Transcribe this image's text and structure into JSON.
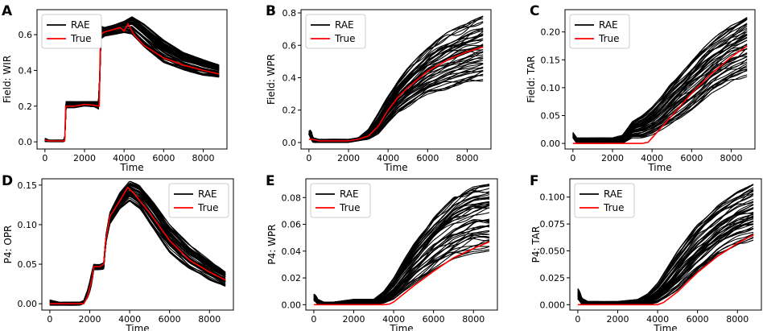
{
  "chart_data": [
    {
      "letter": "A",
      "type": "line",
      "title": "",
      "ylabel": "Field: WIR",
      "xlabel": "Time",
      "xlim": [
        -400,
        9200
      ],
      "ylim": [
        -0.04,
        0.74
      ],
      "xticks": [
        0,
        2000,
        4000,
        6000,
        8000
      ],
      "xtick_labels": [
        "0",
        "2000",
        "4000",
        "6000",
        "8000"
      ],
      "yticks": [
        0,
        0.2,
        0.4,
        0.6
      ],
      "ytick_labels": [
        "0.0",
        "0.2",
        "0.4",
        "0.6"
      ],
      "legend": {
        "position": "upper-left",
        "entries": [
          "RAE",
          "True"
        ]
      },
      "series": [
        {
          "name": "True",
          "color": "#ff0000",
          "x": [
            0,
            200,
            600,
            1000,
            1050,
            1500,
            2000,
            2500,
            2750,
            2800,
            3000,
            3500,
            3800,
            4000,
            4200,
            4300,
            4500,
            5000,
            6000,
            7000,
            8000,
            8800
          ],
          "y": [
            0.01,
            0.005,
            0.005,
            0.005,
            0.2,
            0.2,
            0.21,
            0.205,
            0.2,
            0.6,
            0.615,
            0.63,
            0.64,
            0.62,
            0.66,
            0.64,
            0.6,
            0.54,
            0.47,
            0.43,
            0.4,
            0.38
          ]
        },
        {
          "name": "RAE",
          "color": "#000000",
          "ensemble_count": 50,
          "x": [
            0,
            200,
            600,
            1000,
            1050,
            1500,
            2000,
            2500,
            2750,
            2800,
            3000,
            3500,
            4000,
            4400,
            5000,
            6000,
            7000,
            8000,
            8800
          ],
          "y_low": [
            0.0,
            0.0,
            0.0,
            0.0,
            0.19,
            0.19,
            0.2,
            0.195,
            0.18,
            0.57,
            0.59,
            0.6,
            0.61,
            0.6,
            0.53,
            0.44,
            0.4,
            0.37,
            0.36
          ],
          "y_high": [
            0.02,
            0.01,
            0.01,
            0.01,
            0.225,
            0.225,
            0.225,
            0.225,
            0.225,
            0.65,
            0.64,
            0.655,
            0.675,
            0.7,
            0.66,
            0.57,
            0.5,
            0.46,
            0.43
          ]
        }
      ]
    },
    {
      "letter": "B",
      "type": "line",
      "title": "",
      "ylabel": "Field: WPR",
      "xlabel": "Time",
      "xlim": [
        -400,
        9200
      ],
      "ylim": [
        -0.04,
        0.82
      ],
      "xticks": [
        0,
        2000,
        4000,
        6000,
        8000
      ],
      "xtick_labels": [
        "0",
        "2000",
        "4000",
        "6000",
        "8000"
      ],
      "yticks": [
        0,
        0.2,
        0.4,
        0.6,
        0.8
      ],
      "ytick_labels": [
        "0.0",
        "0.2",
        "0.4",
        "0.6",
        "0.8"
      ],
      "legend": {
        "position": "upper-left",
        "entries": [
          "RAE",
          "True"
        ]
      },
      "series": [
        {
          "name": "True",
          "color": "#ff0000",
          "x": [
            0,
            200,
            500,
            1000,
            1500,
            2000,
            2500,
            3000,
            3500,
            4000,
            4500,
            5000,
            6000,
            7000,
            8000,
            8800
          ],
          "y": [
            0.02,
            0.02,
            0.01,
            0.01,
            0.01,
            0.01,
            0.02,
            0.04,
            0.1,
            0.2,
            0.28,
            0.34,
            0.44,
            0.51,
            0.56,
            0.59
          ]
        },
        {
          "name": "RAE",
          "color": "#000000",
          "ensemble_count": 50,
          "x": [
            0,
            100,
            200,
            500,
            1000,
            1500,
            2000,
            2500,
            3000,
            3500,
            4000,
            4500,
            5000,
            6000,
            7000,
            8000,
            8800
          ],
          "y_low": [
            0.05,
            0.02,
            0.0,
            0.0,
            0.0,
            0.0,
            0.0,
            0.01,
            0.02,
            0.05,
            0.12,
            0.18,
            0.22,
            0.29,
            0.33,
            0.36,
            0.38
          ],
          "y_high": [
            0.07,
            0.08,
            0.03,
            0.02,
            0.02,
            0.02,
            0.02,
            0.03,
            0.08,
            0.18,
            0.29,
            0.38,
            0.46,
            0.59,
            0.68,
            0.74,
            0.78
          ]
        }
      ]
    },
    {
      "letter": "C",
      "type": "line",
      "title": "",
      "ylabel": "Field: TAR",
      "xlabel": "Time",
      "xlim": [
        -400,
        9200
      ],
      "ylim": [
        -0.01,
        0.24
      ],
      "xticks": [
        0,
        2000,
        4000,
        6000,
        8000
      ],
      "xtick_labels": [
        "0",
        "2000",
        "4000",
        "6000",
        "8000"
      ],
      "yticks": [
        0,
        0.05,
        0.1,
        0.15,
        0.2
      ],
      "ytick_labels": [
        "0.00",
        "0.05",
        "0.10",
        "0.15",
        "0.20"
      ],
      "legend": {
        "position": "upper-left",
        "entries": [
          "RAE",
          "True"
        ]
      },
      "series": [
        {
          "name": "True",
          "color": "#ff0000",
          "x": [
            0,
            500,
            1000,
            2000,
            3000,
            3500,
            3800,
            4000,
            4500,
            5000,
            6000,
            7000,
            8000,
            8800
          ],
          "y": [
            0.0,
            0.0,
            0.0,
            0.0,
            0.0,
            0.0,
            0.002,
            0.01,
            0.03,
            0.05,
            0.09,
            0.125,
            0.155,
            0.175
          ]
        },
        {
          "name": "RAE",
          "color": "#000000",
          "ensemble_count": 50,
          "x": [
            0,
            100,
            200,
            500,
            1000,
            1500,
            2000,
            2500,
            3000,
            3500,
            4000,
            4500,
            5000,
            6000,
            7000,
            8000,
            8800
          ],
          "y_low": [
            0.01,
            0.005,
            0.0,
            0.0,
            0.0,
            0.0,
            0.0,
            0.0,
            0.01,
            0.01,
            0.015,
            0.025,
            0.035,
            0.06,
            0.09,
            0.11,
            0.12
          ],
          "y_high": [
            0.02,
            0.015,
            0.01,
            0.01,
            0.01,
            0.01,
            0.01,
            0.015,
            0.04,
            0.05,
            0.065,
            0.085,
            0.11,
            0.15,
            0.185,
            0.215,
            0.23
          ]
        }
      ]
    },
    {
      "letter": "D",
      "type": "line",
      "title": "",
      "ylabel": "P4: OPR",
      "xlabel": "Time",
      "xlim": [
        -400,
        9200
      ],
      "ylim": [
        -0.008,
        0.158
      ],
      "xticks": [
        0,
        2000,
        4000,
        6000,
        8000
      ],
      "xtick_labels": [
        "0",
        "2000",
        "4000",
        "6000",
        "8000"
      ],
      "yticks": [
        0,
        0.05,
        0.1,
        0.15
      ],
      "ytick_labels": [
        "0.00",
        "0.05",
        "0.10",
        "0.15"
      ],
      "legend": {
        "position": "upper-right",
        "entries": [
          "RAE",
          "True"
        ]
      },
      "series": [
        {
          "name": "True",
          "color": "#ff0000",
          "x": [
            0,
            500,
            1000,
            1500,
            1700,
            1900,
            2000,
            2100,
            2200,
            2500,
            2700,
            2800,
            3000,
            3500,
            3900,
            4200,
            5000,
            6000,
            7000,
            8000,
            8800
          ],
          "y": [
            0.0,
            0.0,
            0.0,
            0.0,
            0.0,
            0.01,
            0.02,
            0.03,
            0.047,
            0.047,
            0.05,
            0.08,
            0.11,
            0.13,
            0.147,
            0.14,
            0.115,
            0.08,
            0.055,
            0.04,
            0.03
          ]
        },
        {
          "name": "RAE",
          "color": "#000000",
          "ensemble_count": 50,
          "x": [
            0,
            500,
            1000,
            1500,
            1700,
            1900,
            2000,
            2100,
            2200,
            2500,
            2700,
            2800,
            3000,
            3500,
            4000,
            4500,
            5000,
            6000,
            7000,
            8000,
            8800
          ],
          "y_low": [
            -0.002,
            -0.002,
            -0.002,
            -0.002,
            0.0,
            0.008,
            0.015,
            0.025,
            0.043,
            0.043,
            0.043,
            0.075,
            0.1,
            0.12,
            0.13,
            0.12,
            0.1,
            0.065,
            0.043,
            0.03,
            0.022
          ],
          "y_high": [
            0.005,
            0.002,
            0.002,
            0.002,
            0.004,
            0.018,
            0.028,
            0.04,
            0.05,
            0.05,
            0.052,
            0.085,
            0.115,
            0.14,
            0.155,
            0.15,
            0.135,
            0.1,
            0.075,
            0.055,
            0.04
          ]
        }
      ]
    },
    {
      "letter": "E",
      "type": "line",
      "title": "",
      "ylabel": "P4: WPR",
      "xlabel": "Time",
      "xlim": [
        -400,
        9200
      ],
      "ylim": [
        -0.004,
        0.094
      ],
      "xticks": [
        0,
        2000,
        4000,
        6000,
        8000
      ],
      "xtick_labels": [
        "0",
        "2000",
        "4000",
        "6000",
        "8000"
      ],
      "yticks": [
        0,
        0.02,
        0.04,
        0.06,
        0.08
      ],
      "ytick_labels": [
        "0.00",
        "0.02",
        "0.04",
        "0.06",
        "0.08"
      ],
      "legend": {
        "position": "upper-left",
        "entries": [
          "RAE",
          "True"
        ]
      },
      "series": [
        {
          "name": "True",
          "color": "#ff0000",
          "x": [
            0,
            500,
            1000,
            2000,
            3000,
            3500,
            3800,
            4000,
            4500,
            5000,
            6000,
            7000,
            8000,
            8800
          ],
          "y": [
            0.0,
            0.0,
            0.0,
            0.0,
            0.0,
            0.0,
            0.0005,
            0.002,
            0.008,
            0.014,
            0.025,
            0.035,
            0.042,
            0.047
          ]
        },
        {
          "name": "RAE",
          "color": "#000000",
          "ensemble_count": 50,
          "x": [
            0,
            100,
            200,
            500,
            1000,
            1500,
            2000,
            2500,
            3000,
            3500,
            4000,
            4500,
            5000,
            6000,
            7000,
            8000,
            8800
          ],
          "y_low": [
            0.003,
            0.002,
            0.0,
            0.0,
            0.0,
            0.0,
            0.0,
            0.0,
            0.0,
            0.001,
            0.004,
            0.01,
            0.015,
            0.025,
            0.033,
            0.038,
            0.04
          ],
          "y_high": [
            0.008,
            0.007,
            0.004,
            0.002,
            0.002,
            0.003,
            0.004,
            0.004,
            0.004,
            0.01,
            0.02,
            0.033,
            0.045,
            0.065,
            0.08,
            0.088,
            0.09
          ]
        }
      ]
    },
    {
      "letter": "F",
      "type": "line",
      "title": "",
      "ylabel": "P4: TAR",
      "xlabel": "Time",
      "xlim": [
        -400,
        9200
      ],
      "ylim": [
        -0.005,
        0.117
      ],
      "xticks": [
        0,
        2000,
        4000,
        6000,
        8000
      ],
      "xtick_labels": [
        "0",
        "2000",
        "4000",
        "6000",
        "8000"
      ],
      "yticks": [
        0,
        0.025,
        0.05,
        0.075,
        0.1
      ],
      "ytick_labels": [
        "0.000",
        "0.025",
        "0.050",
        "0.075",
        "0.100"
      ],
      "legend": {
        "position": "upper-left",
        "entries": [
          "RAE",
          "True"
        ]
      },
      "series": [
        {
          "name": "True",
          "color": "#ff0000",
          "x": [
            0,
            500,
            1000,
            2000,
            3000,
            3500,
            4000,
            4300,
            5000,
            6000,
            7000,
            8000,
            8800
          ],
          "y": [
            0.0,
            0.0,
            0.0,
            0.0,
            0.0,
            0.0,
            0.0,
            0.002,
            0.012,
            0.03,
            0.045,
            0.057,
            0.065
          ]
        },
        {
          "name": "RAE",
          "color": "#000000",
          "ensemble_count": 50,
          "x": [
            0,
            100,
            200,
            500,
            1000,
            1500,
            2000,
            2500,
            3000,
            3500,
            4000,
            4500,
            5000,
            6000,
            7000,
            8000,
            8800
          ],
          "y_low": [
            0.005,
            0.003,
            0.0,
            0.0,
            0.0,
            0.0,
            0.0,
            0.0,
            0.0,
            0.0,
            0.002,
            0.007,
            0.013,
            0.03,
            0.045,
            0.055,
            0.06
          ],
          "y_high": [
            0.015,
            0.012,
            0.006,
            0.003,
            0.003,
            0.003,
            0.003,
            0.004,
            0.005,
            0.01,
            0.02,
            0.035,
            0.05,
            0.075,
            0.092,
            0.105,
            0.112
          ]
        }
      ]
    }
  ]
}
